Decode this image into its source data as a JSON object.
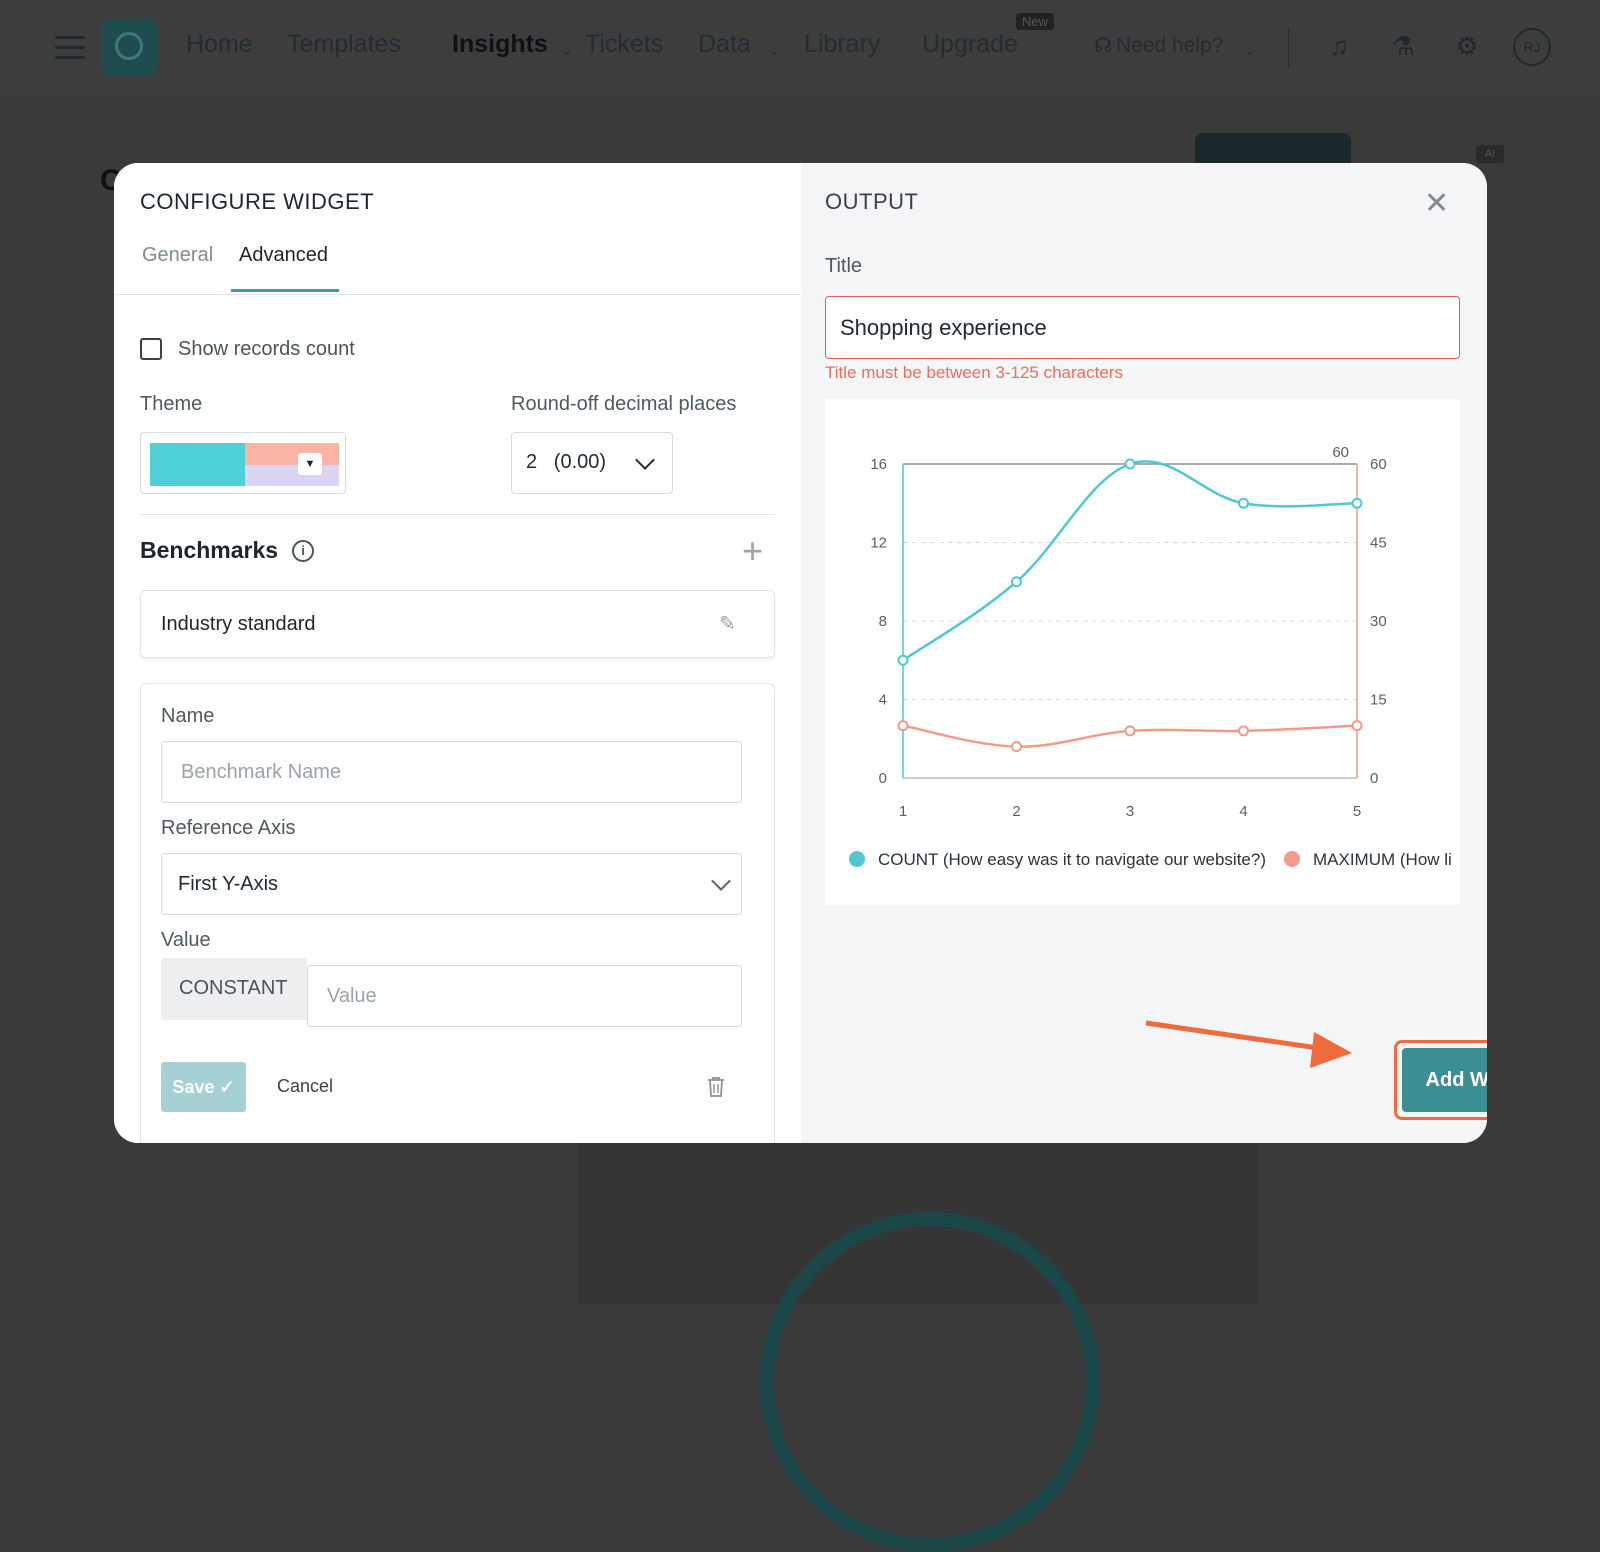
{
  "nav": {
    "items": [
      "Home",
      "Templates",
      "Insights",
      "Tickets",
      "Data",
      "Library",
      "Upgrade",
      "Need help?"
    ],
    "new_badge": "New",
    "avatar": "RJ",
    "ai_badge": "AI",
    "bg_letter": "C"
  },
  "left": {
    "title": "CONFIGURE WIDGET",
    "tabs": {
      "general": "General",
      "advanced": "Advanced"
    },
    "show_records_count": "Show records count",
    "theme_label": "Theme",
    "theme_colors": [
      "#4fcfd6",
      "#fbb3a3",
      "#dcd4f3"
    ],
    "round_off_label": "Round-off decimal places",
    "round_off_value": "2   (0.00)",
    "benchmarks_title": "Benchmarks",
    "industry_standard": "Industry standard",
    "form": {
      "name_label": "Name",
      "name_placeholder": "Benchmark Name",
      "ref_axis_label": "Reference Axis",
      "ref_axis_value": "First Y-Axis",
      "value_label": "Value",
      "value_type": "CONSTANT",
      "value_placeholder": "Value",
      "save": "Save",
      "cancel": "Cancel"
    }
  },
  "right": {
    "title": "OUTPUT",
    "title_label": "Title",
    "title_value": "Shopping experience",
    "error": "Title must be between 3-125 characters",
    "add_widget": "Add Widget"
  },
  "chart_data": {
    "type": "line",
    "x": [
      1,
      2,
      3,
      4,
      5
    ],
    "series": [
      {
        "name": "COUNT (How easy was it to navigate our website?)",
        "axis": "left",
        "color": "#4fc8cf",
        "values": [
          6,
          10,
          16,
          14,
          14
        ]
      },
      {
        "name": "MAXIMUM (How li",
        "axis": "right",
        "color": "#f49a8a",
        "values": [
          10,
          6,
          9,
          9,
          10
        ]
      }
    ],
    "y_left": {
      "ticks": [
        0,
        4,
        8,
        12,
        16
      ],
      "range": [
        0,
        16
      ]
    },
    "y_right": {
      "ticks": [
        0,
        15,
        30,
        45,
        60
      ],
      "range": [
        0,
        60
      ]
    },
    "right_max_label": "60",
    "grid": true,
    "legend": "bottom"
  }
}
